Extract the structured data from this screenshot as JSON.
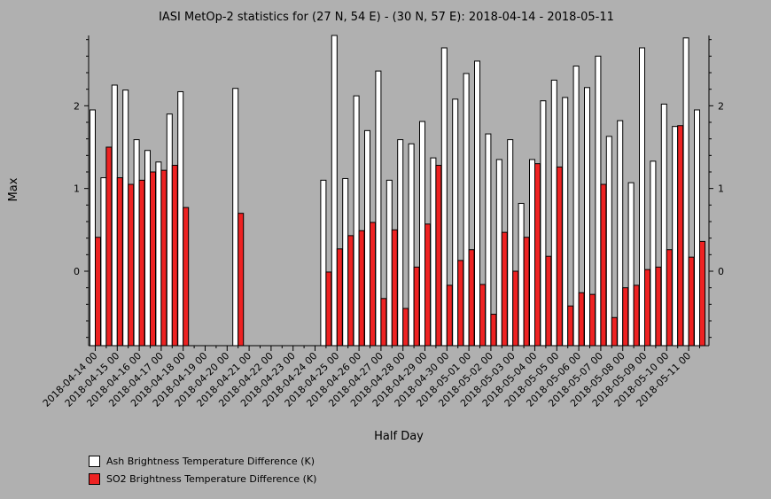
{
  "chart_data": {
    "type": "bar",
    "title": "IASI MetOp-2 statistics for (27 N, 54 E) - (30 N, 57 E): 2018-04-14 - 2018-05-11",
    "xlabel": "Half Day",
    "ylabel": "Max",
    "ylim": [
      -0.9,
      2.85
    ],
    "yticks": [
      0,
      1,
      2
    ],
    "grid": false,
    "legend_position": "bottom-left",
    "tick_labels": [
      "2018-04-14 00",
      "2018-04-15 00",
      "2018-04-16 00",
      "2018-04-17 00",
      "2018-04-18 00",
      "2018-04-19 00",
      "2018-04-20 00",
      "2018-04-21 00",
      "2018-04-22 00",
      "2018-04-23 00",
      "2018-04-24 00",
      "2018-04-25 00",
      "2018-04-26 00",
      "2018-04-27 00",
      "2018-04-28 00",
      "2018-04-29 00",
      "2018-04-30 00",
      "2018-05-01 00",
      "2018-05-02 00",
      "2018-05-03 00",
      "2018-05-04 00",
      "2018-05-05 00",
      "2018-05-06 00",
      "2018-05-07 00",
      "2018-05-08 00",
      "2018-05-09 00",
      "2018-05-10 00",
      "2018-05-11 00"
    ],
    "series": [
      {
        "name": "Ash Brightness Temperature Difference (K)",
        "color": "#ffffff",
        "values": [
          1.95,
          1.13,
          2.25,
          2.19,
          1.59,
          1.46,
          1.32,
          1.9,
          2.17,
          null,
          null,
          null,
          null,
          2.21,
          null,
          null,
          null,
          null,
          null,
          null,
          null,
          1.1,
          2.85,
          1.12,
          2.12,
          1.7,
          2.42,
          1.1,
          1.59,
          1.54,
          1.81,
          1.37,
          2.7,
          2.08,
          2.39,
          2.54,
          1.66,
          1.35,
          1.59,
          0.82,
          1.35,
          2.06,
          2.31,
          2.1,
          2.48,
          2.22,
          2.6,
          1.63,
          1.82,
          1.07,
          2.7,
          1.33,
          2.02,
          1.75,
          2.82,
          1.95
        ]
      },
      {
        "name": "SO2 Brightness Temperature Difference (K)",
        "color": "#ee2222",
        "values": [
          0.41,
          1.5,
          1.13,
          1.05,
          1.1,
          1.2,
          1.22,
          1.28,
          0.77,
          null,
          null,
          null,
          null,
          0.7,
          null,
          null,
          null,
          null,
          null,
          null,
          null,
          -0.01,
          0.27,
          0.43,
          0.49,
          0.59,
          -0.33,
          0.5,
          -0.45,
          0.05,
          0.57,
          1.28,
          -0.17,
          0.13,
          0.26,
          -0.16,
          -0.52,
          0.47,
          0.0,
          0.41,
          1.3,
          0.18,
          1.26,
          -0.42,
          -0.26,
          -0.28,
          1.05,
          -0.56,
          -0.2,
          -0.17,
          0.02,
          0.05,
          0.26,
          1.76,
          0.17,
          0.36
        ]
      }
    ]
  }
}
